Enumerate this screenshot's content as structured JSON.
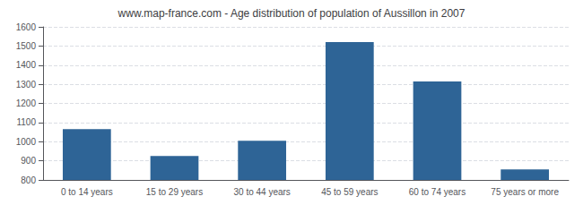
{
  "chart_data": {
    "type": "bar",
    "title": "www.map-france.com - Age distribution of population of Aussillon in 2007",
    "categories": [
      "0 to 14 years",
      "15 to 29 years",
      "30 to 44 years",
      "45 to 59 years",
      "60 to 74 years",
      "75 years or more"
    ],
    "values": [
      1065,
      925,
      1005,
      1520,
      1315,
      855
    ],
    "color": "#2e6496",
    "ylim": [
      800,
      1600
    ],
    "yticks": [
      800,
      900,
      1000,
      1100,
      1200,
      1300,
      1400,
      1500,
      1600
    ],
    "grid": true
  }
}
